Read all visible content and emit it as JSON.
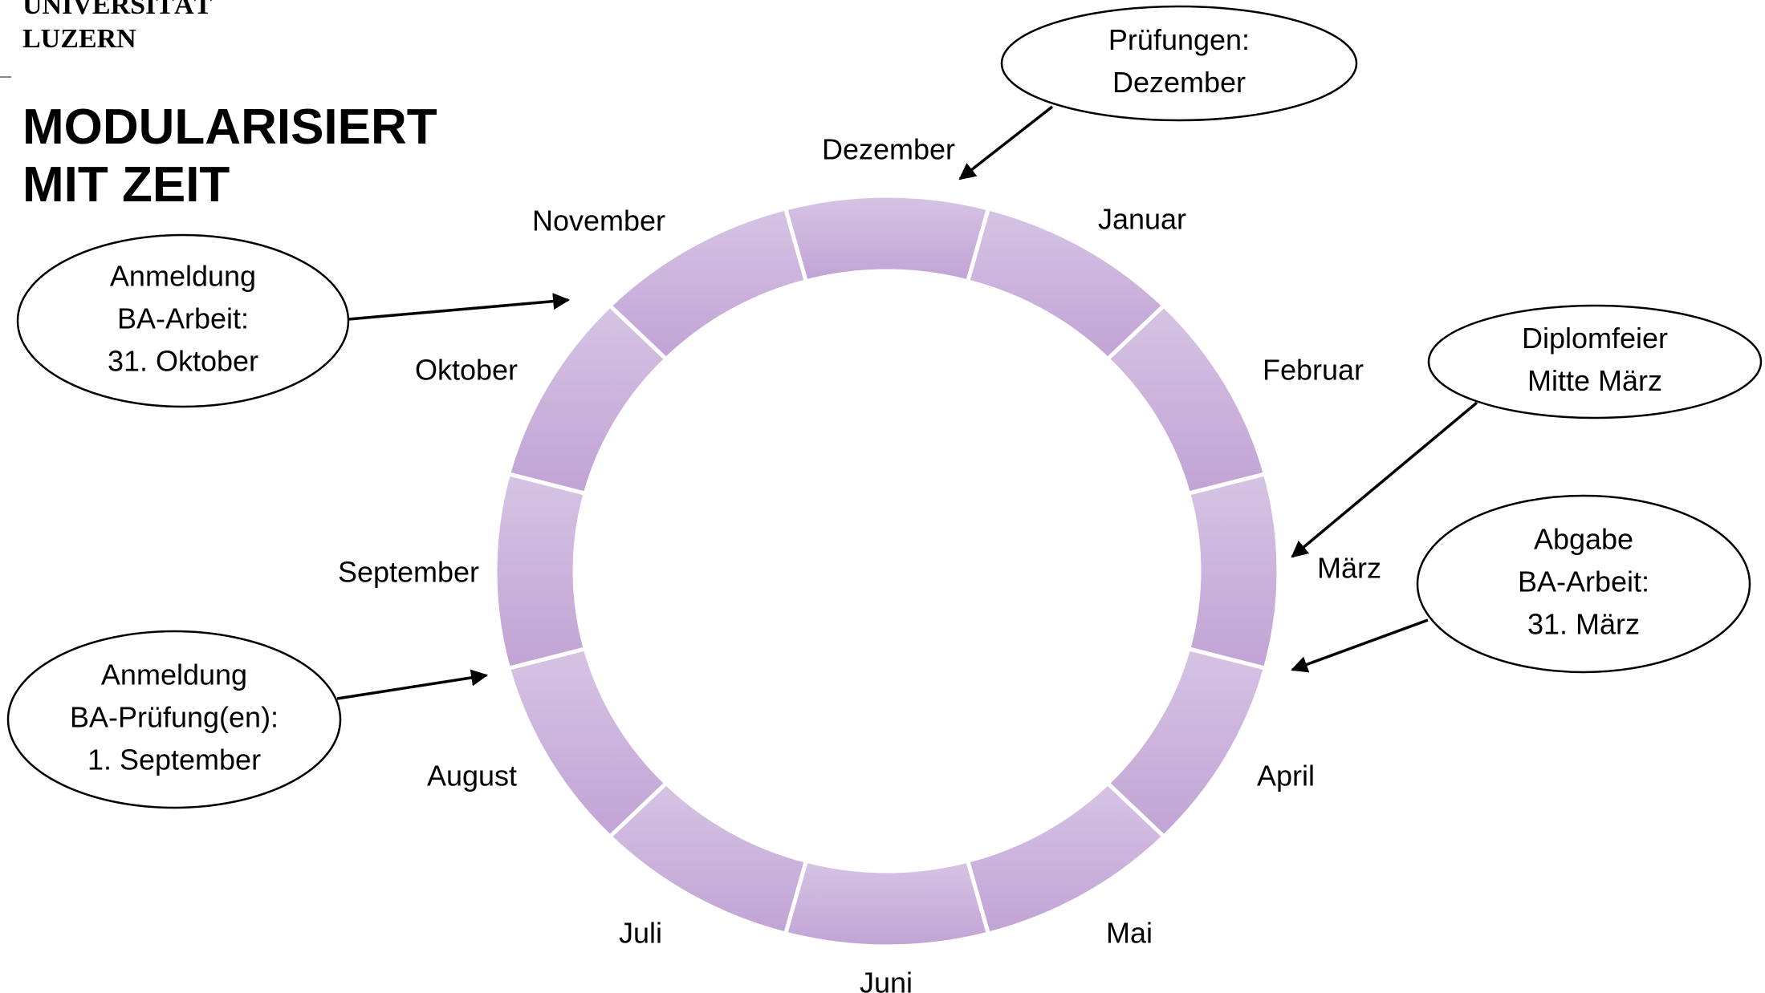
{
  "logo": {
    "lines": [
      "UNIVERSITÄT",
      "LUZERN"
    ]
  },
  "title": {
    "lines": [
      "MODULARISIERT",
      "MIT ZEIT"
    ]
  },
  "months": [
    "Januar",
    "Februar",
    "März",
    "April",
    "Mai",
    "Juni",
    "Juli",
    "August",
    "September",
    "Oktober",
    "November",
    "Dezember"
  ],
  "callouts": [
    {
      "lines": [
        "Prüfungen:",
        "Dezember"
      ]
    },
    {
      "lines": [
        "Anmeldung",
        "BA-Arbeit:",
        "31. Oktober"
      ]
    },
    {
      "lines": [
        "Diplomfeier",
        "Mitte März"
      ]
    },
    {
      "lines": [
        "Abgabe",
        "BA-Arbeit:",
        "31. März"
      ]
    },
    {
      "lines": [
        "Anmeldung",
        "BA-Prüfung(en):",
        "1. September"
      ]
    }
  ]
}
